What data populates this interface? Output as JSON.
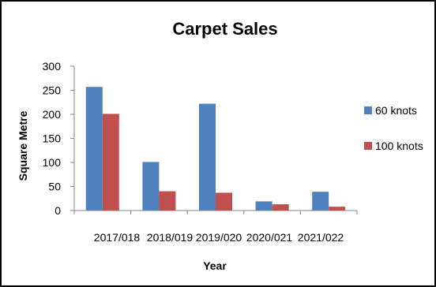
{
  "chart_data": {
    "type": "bar",
    "title": "Carpet Sales",
    "xlabel": "Year",
    "ylabel": "Square Metre",
    "categories": [
      "2017/018",
      "2018/019",
      "2019/020",
      "2020/021",
      "2021/022"
    ],
    "series": [
      {
        "name": "60 knots",
        "color": "#4F81BD",
        "values": [
          257,
          101,
          222,
          19,
          39
        ]
      },
      {
        "name": "100 knots",
        "color": "#C0504D",
        "values": [
          201,
          40,
          37,
          13,
          8
        ]
      }
    ],
    "ylim": [
      0,
      300
    ],
    "yticks": [
      0,
      50,
      100,
      150,
      200,
      250,
      300
    ],
    "grid": false,
    "legend_position": "right"
  }
}
